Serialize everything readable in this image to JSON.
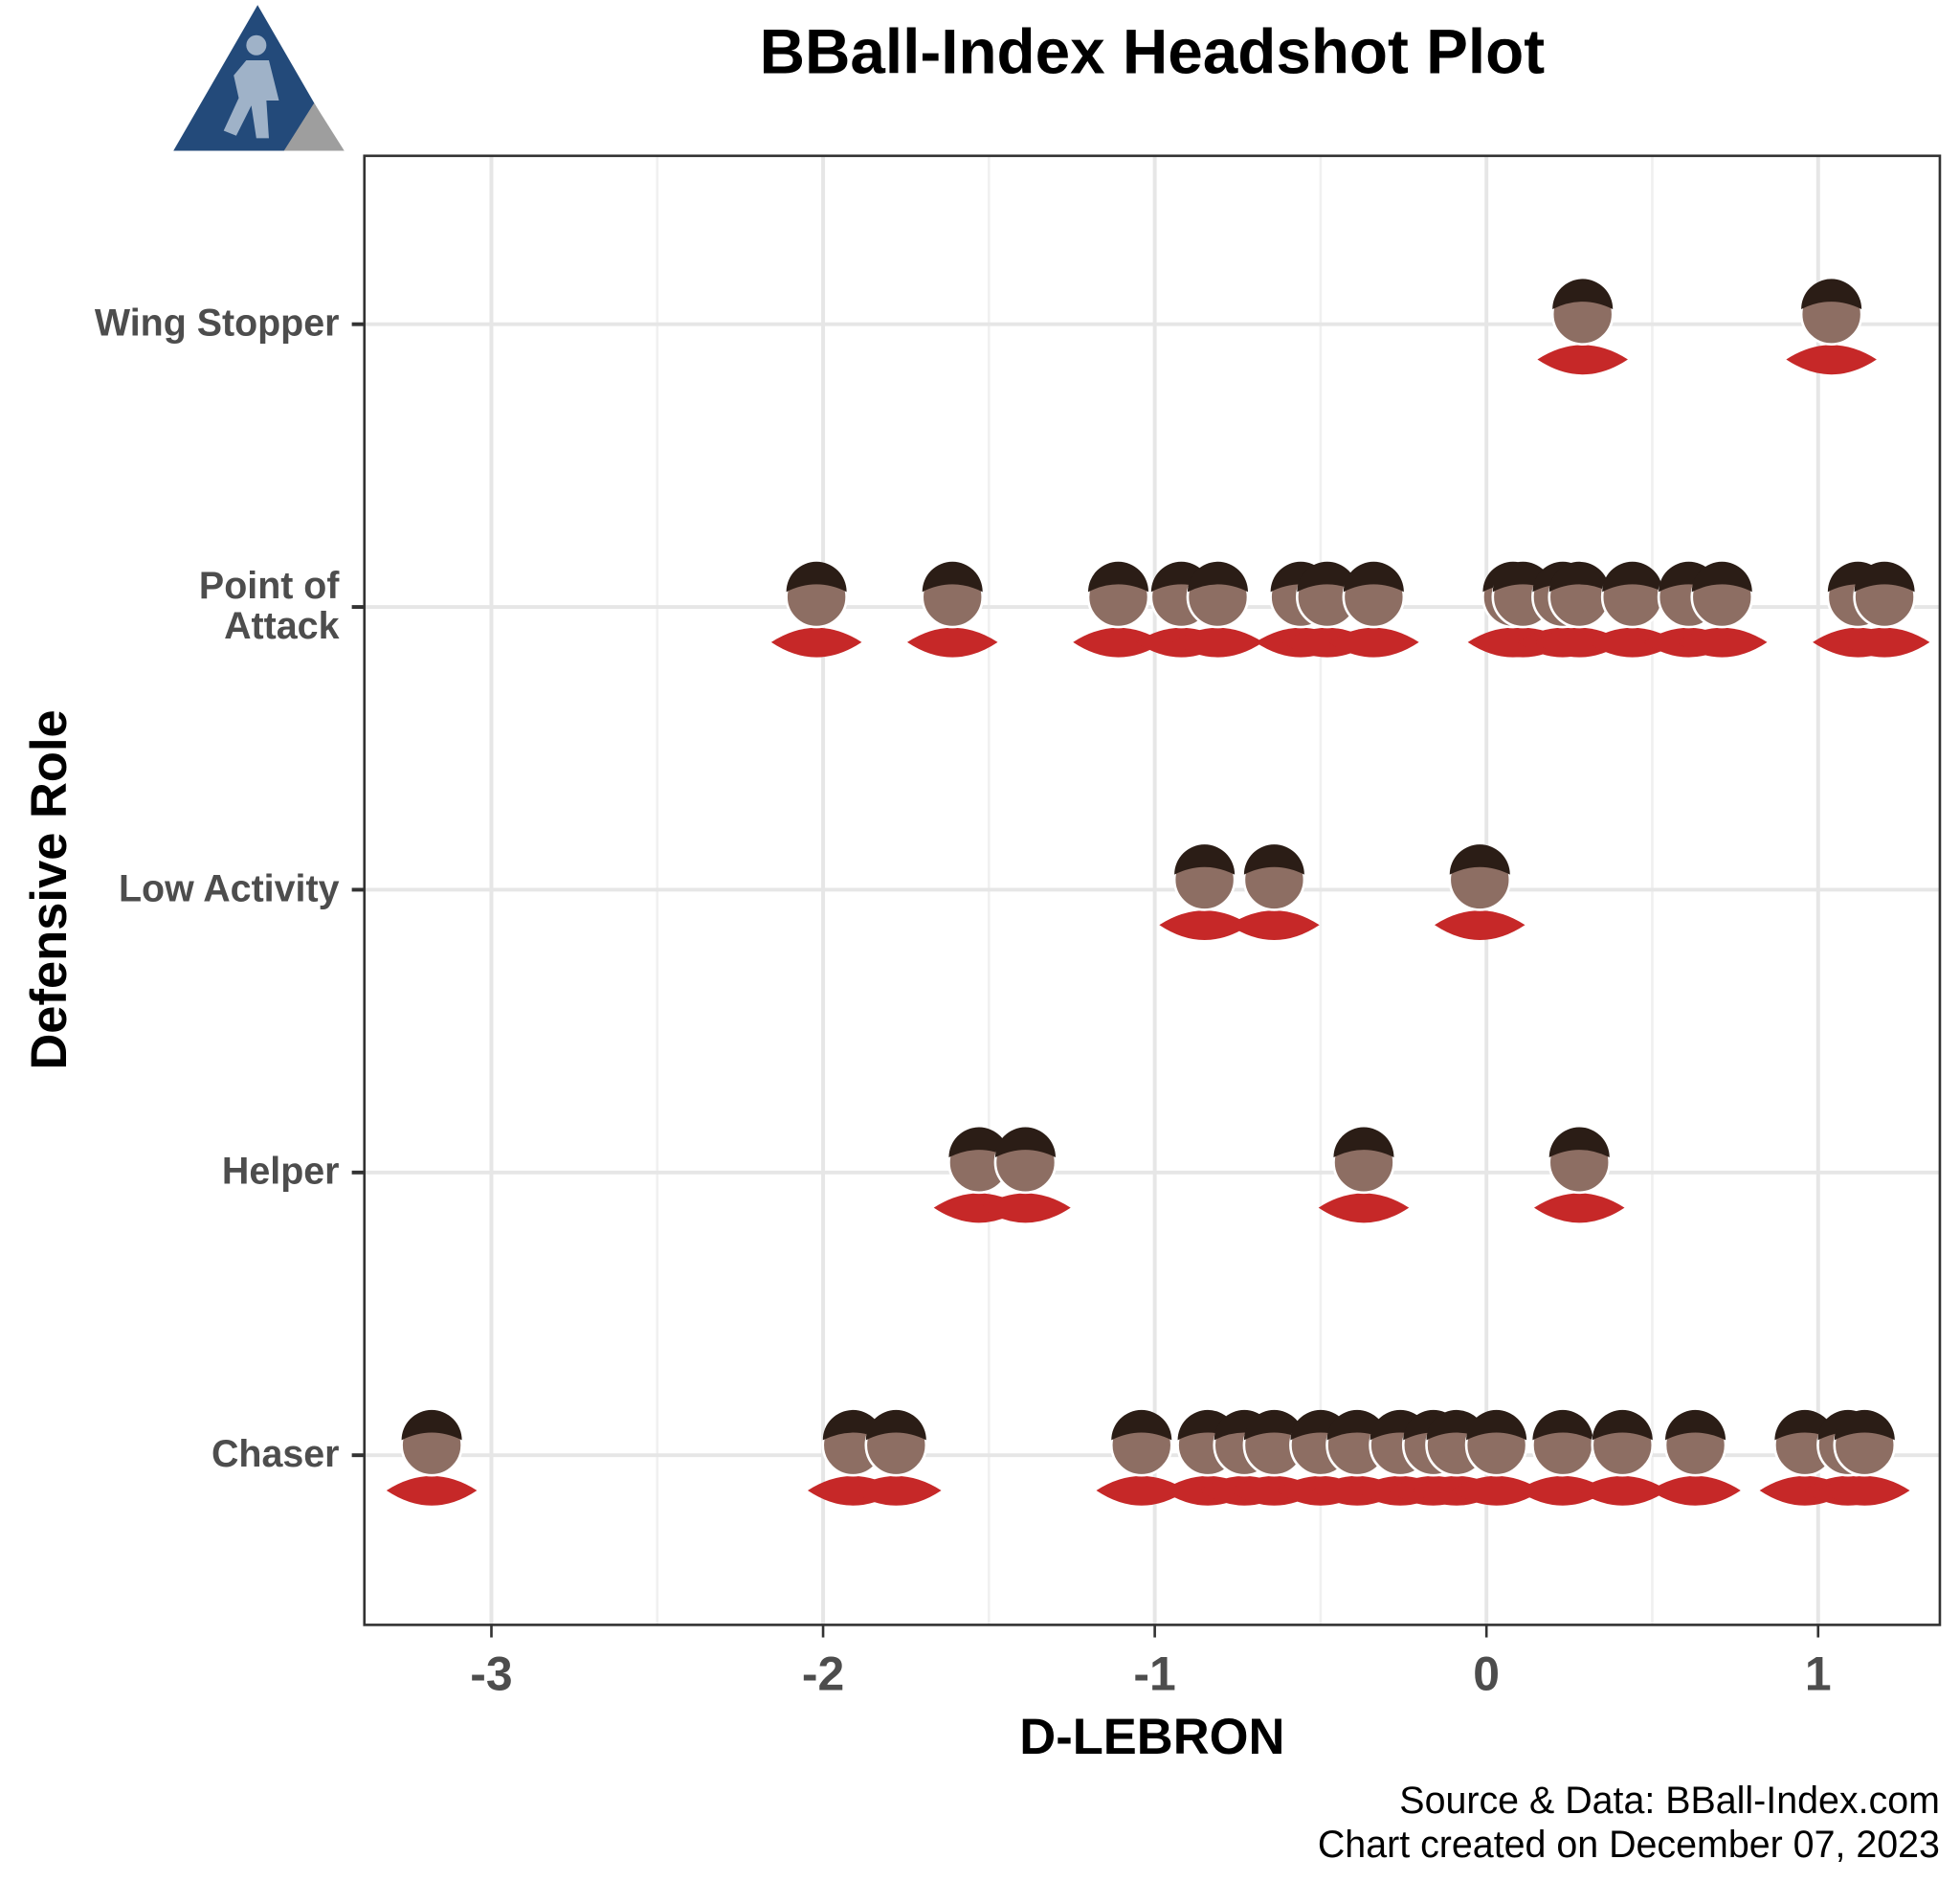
{
  "chart_data": {
    "type": "headshot-strip",
    "title": "BBall-Index Headshot Plot",
    "x_label": "D-LEBRON",
    "y_label": "Defensive Role",
    "source": "Source & Data: BBall-Index.com",
    "note": "Chart created on December 07, 2023",
    "categories": [
      "Wing Stopper",
      "Point of Attack",
      "Low Activity",
      "Helper",
      "Chaser"
    ],
    "values": [
      [
        0.29,
        1.04
      ],
      [
        -2.02,
        -1.61,
        -1.11,
        -0.92,
        -0.81,
        -0.56,
        -0.48,
        -0.34,
        0.08,
        0.11,
        0.23,
        0.28,
        0.44,
        0.61,
        0.71,
        1.12,
        1.2
      ],
      [
        -0.85,
        -0.64,
        -0.02
      ],
      [
        -1.53,
        -1.39,
        -0.37,
        0.28
      ],
      [
        -3.18,
        -1.91,
        -1.78,
        -1.04,
        -0.84,
        -0.73,
        -0.64,
        -0.5,
        -0.39,
        -0.26,
        -0.16,
        -0.09,
        0.03,
        0.23,
        0.41,
        0.63,
        0.96,
        1.09,
        1.14
      ]
    ],
    "color": "#8d6e63",
    "xlim": [
      -3.383,
      1.367
    ],
    "xticks": [
      -3,
      -2,
      -1,
      0,
      1
    ],
    "grid": true
  }
}
